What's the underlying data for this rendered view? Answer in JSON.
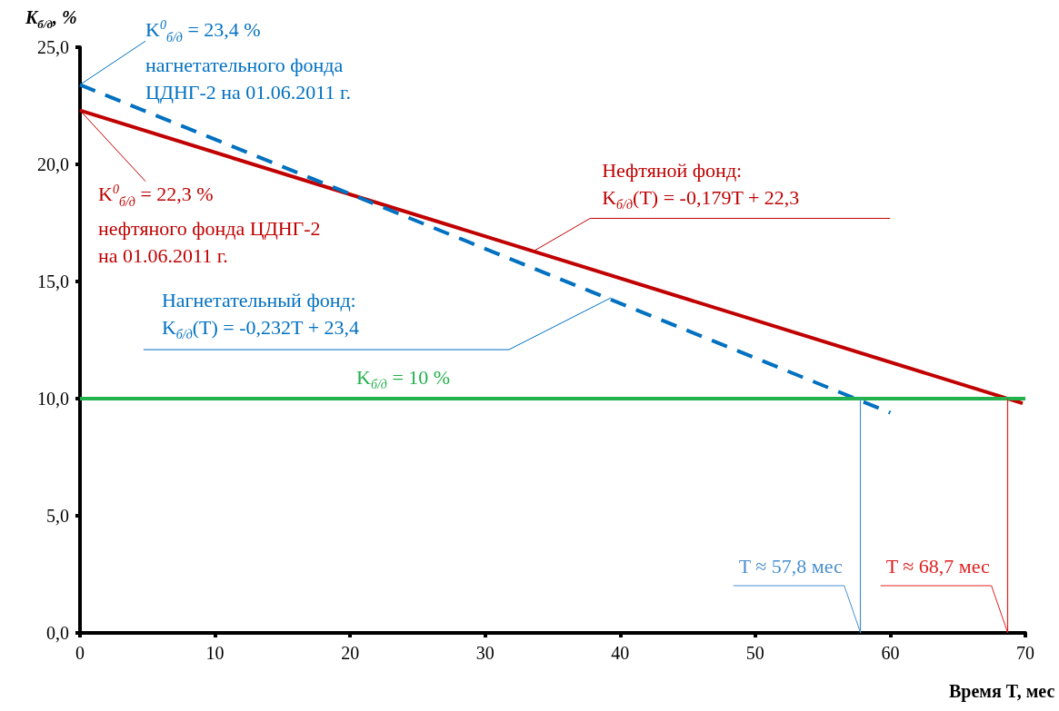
{
  "chart_data": {
    "type": "line",
    "xlabel": "Время T, мес",
    "ylabel": "K$_{б/д}$, %",
    "xlim": [
      0,
      70
    ],
    "xticks": [
      0,
      10,
      20,
      30,
      40,
      50,
      60,
      70
    ],
    "ylim": [
      0,
      25
    ],
    "yticks": [
      {
        "value": 0,
        "label": "0,0"
      },
      {
        "value": 5,
        "label": "5,0"
      },
      {
        "value": 10,
        "label": "10,0"
      },
      {
        "value": 15,
        "label": "15,0"
      },
      {
        "value": 20,
        "label": "20,0"
      },
      {
        "value": 25,
        "label": "25,0"
      }
    ],
    "marker": "none",
    "series": [
      {
        "color": "#c00000",
        "x": [
          0,
          69.8
        ],
        "values": [
          22.3,
          9.8
        ],
        "line_style": "solid"
      },
      {
        "color": "#0070c0",
        "x": [
          0,
          60
        ],
        "values": [
          23.4,
          9.4
        ],
        "line_style": "dashed"
      }
    ],
    "ref_lines": [
      {
        "axis": "y",
        "value": 10,
        "label": "K$_{б/д}$ = 10 %",
        "color": "#22b14c"
      },
      {
        "axis": "x",
        "value": 57.8,
        "label": "T ≈ 57,8 мес",
        "color": "#4a8fd0"
      },
      {
        "axis": "x",
        "value": 68.7,
        "label": "T ≈ 68,7 мес",
        "color": "#e02020"
      }
    ],
    "annotations": [
      {
        "text": "K$^{0}$$_{б/д}$ = 23,4 %\nнагнетательного фонда\nЦДНГ-2 на 01.06.2011 г.",
        "x": 0,
        "y": 23.4
      },
      {
        "text": "K$^{0}$$_{б/д}$ = 22,3 %\nнефтяного фонда ЦДНГ-2\nна 01.06.2011 г.",
        "x": 0,
        "y": 22.3
      },
      {
        "text": "Нефтяной фонд:\nK$_{б/д}$(T) = -0,179T + 22,3",
        "x": 33.6,
        "y": 16.3
      },
      {
        "text": "Нагнетательный фонд:\nK$_{б/д}$(T) = -0,232T + 23,4",
        "x": 39.3,
        "y": 14.3
      }
    ]
  }
}
